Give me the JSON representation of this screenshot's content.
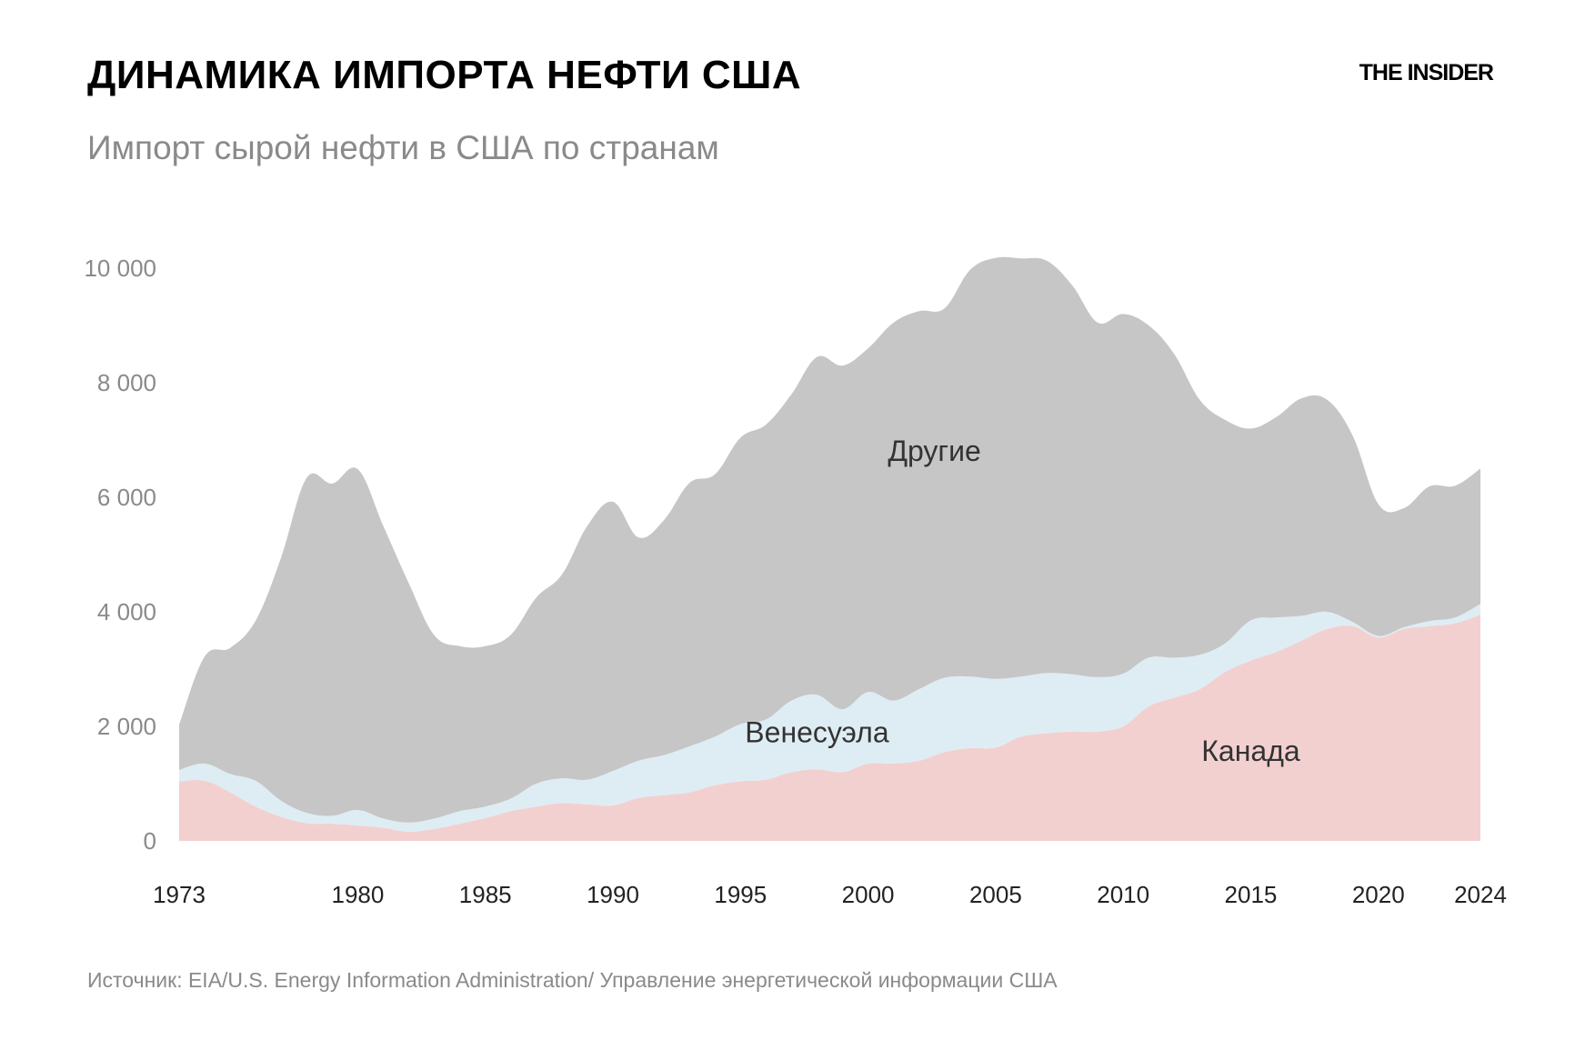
{
  "header": {
    "title": "ДИНАМИКА ИМПОРТА НЕФТИ США",
    "subtitle": "Импорт сырой нефти в США по странам",
    "logo": "THE INSIDER"
  },
  "footer": {
    "source": "Источник: EIA/U.S. Energy Information Administration/ Управление энергетической информации США"
  },
  "colors": {
    "canada": "#f3d0d0",
    "venezuela": "#deedf4",
    "others": "#c6c6c6",
    "axis_text": "#8a8a8a"
  },
  "chart_data": {
    "type": "area",
    "stacked": true,
    "title": "ДИНАМИКА ИМПОРТА НЕФТИ США",
    "subtitle": "Импорт сырой нефти в США по странам",
    "ylim": [
      0,
      10000
    ],
    "yticks": [
      0,
      2000,
      4000,
      6000,
      8000,
      10000
    ],
    "ytick_labels": [
      "0",
      "2 000",
      "4 000",
      "6 000",
      "8 000",
      "10 000"
    ],
    "xticks": [
      1973,
      1980,
      1985,
      1990,
      1995,
      2000,
      2005,
      2010,
      2015,
      2020,
      2024
    ],
    "x": [
      1973,
      1974,
      1975,
      1976,
      1977,
      1978,
      1979,
      1980,
      1981,
      1982,
      1983,
      1984,
      1985,
      1986,
      1987,
      1988,
      1989,
      1990,
      1991,
      1992,
      1993,
      1994,
      1995,
      1996,
      1997,
      1998,
      1999,
      2000,
      2001,
      2002,
      2003,
      2004,
      2005,
      2006,
      2007,
      2008,
      2009,
      2010,
      2011,
      2012,
      2013,
      2014,
      2015,
      2016,
      2017,
      2018,
      2019,
      2020,
      2021,
      2022,
      2023,
      2024
    ],
    "series": [
      {
        "name": "Канада",
        "key": "canada",
        "values": [
          1040,
          1050,
          850,
          600,
          420,
          310,
          300,
          270,
          230,
          160,
          210,
          300,
          400,
          520,
          600,
          660,
          640,
          620,
          750,
          800,
          850,
          970,
          1040,
          1070,
          1200,
          1250,
          1200,
          1350,
          1350,
          1400,
          1550,
          1620,
          1630,
          1820,
          1880,
          1910,
          1910,
          2000,
          2350,
          2500,
          2650,
          2950,
          3150,
          3300,
          3500,
          3700,
          3750,
          3550,
          3700,
          3750,
          3800,
          3950
        ]
      },
      {
        "name": "Венесуэла",
        "key": "venezuela",
        "values": [
          200,
          300,
          320,
          450,
          280,
          180,
          140,
          270,
          160,
          160,
          180,
          220,
          200,
          220,
          400,
          430,
          430,
          600,
          650,
          700,
          800,
          850,
          1000,
          1050,
          1250,
          1300,
          1100,
          1250,
          1100,
          1250,
          1300,
          1250,
          1200,
          1050,
          1050,
          1000,
          950,
          920,
          850,
          700,
          600,
          500,
          700,
          600,
          430,
          300,
          70,
          30,
          30,
          90,
          100,
          190
        ]
      },
      {
        "name": "Другие",
        "key": "others",
        "values": [
          790,
          1870,
          2200,
          2800,
          4250,
          5850,
          5800,
          5950,
          5110,
          4180,
          3200,
          2880,
          2800,
          2860,
          3250,
          3560,
          4430,
          4700,
          3900,
          4100,
          4600,
          4580,
          5000,
          5150,
          5350,
          5900,
          6000,
          6000,
          6600,
          6600,
          6450,
          7100,
          7350,
          7300,
          7200,
          6790,
          6190,
          6280,
          5800,
          5300,
          4450,
          3900,
          3350,
          3500,
          3800,
          3700,
          3250,
          2300,
          2080,
          2350,
          2300,
          2360
        ]
      }
    ],
    "labels": [
      {
        "text": "Другие",
        "series": "others"
      },
      {
        "text": "Венесуэла",
        "series": "venezuela"
      },
      {
        "text": "Канада",
        "series": "canada"
      }
    ],
    "grid": false,
    "legend": "inline labels"
  }
}
